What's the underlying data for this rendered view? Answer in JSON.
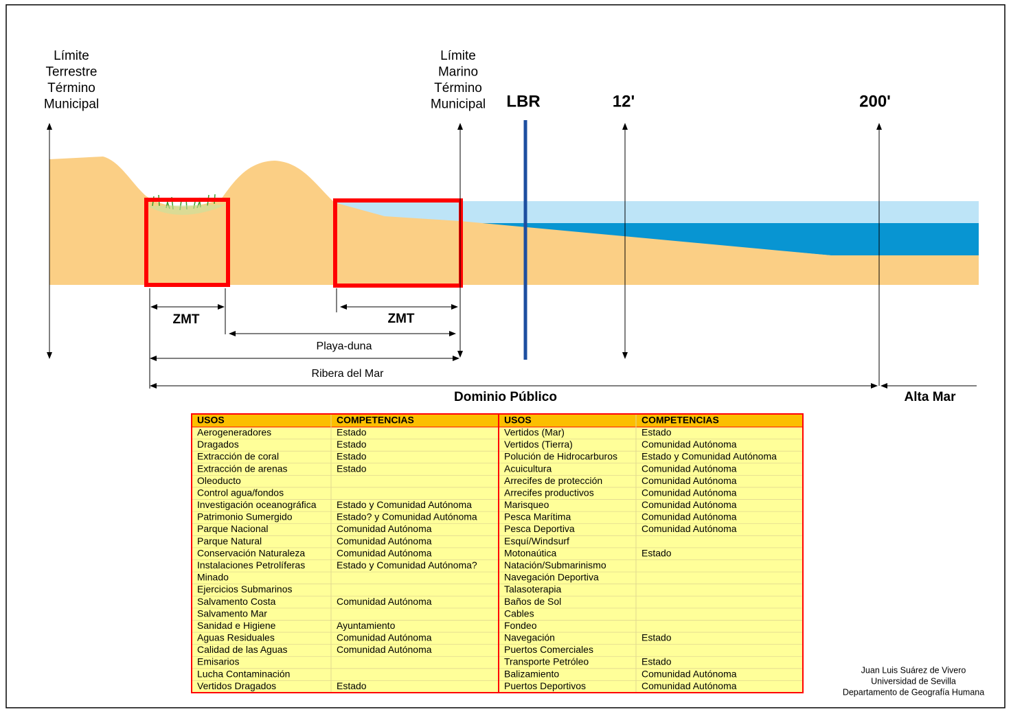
{
  "labels": {
    "terrestre": [
      "Límite",
      "Terrestre",
      "Término",
      "Municipal"
    ],
    "marino": [
      "Límite",
      "Marino",
      "Término",
      "Municipal"
    ],
    "lbr": "LBR",
    "twelve": "12'",
    "twohundred": "200'"
  },
  "zones": {
    "zmt_1": "ZMT",
    "zmt_2": "ZMT",
    "playa_duna": "Playa-duna",
    "ribera": "Ribera del Mar",
    "dominio": "Dominio Público",
    "alta_mar": "Alta Mar"
  },
  "table": {
    "headers": [
      "USOS",
      "COMPETENCIAS",
      "USOS",
      "COMPETENCIAS"
    ],
    "left": [
      {
        "uso": "Aerogeneradores",
        "competencia": "Estado"
      },
      {
        "uso": "Dragados",
        "competencia": "Estado"
      },
      {
        "uso": "Extracción de coral",
        "competencia": "Estado"
      },
      {
        "uso": "Extracción de arenas",
        "competencia": "Estado"
      },
      {
        "uso": "Oleoducto"
      },
      {
        "uso": "Control agua/fondos"
      },
      {
        "uso": "Investigación oceanográfica",
        "competencia": "Estado y Comunidad Autónoma"
      },
      {
        "uso": "Patrimonio Sumergido",
        "competencia": "Estado? y Comunidad Autónoma"
      },
      {
        "uso": "Parque Nacional",
        "competencia": "Comunidad Autónoma"
      },
      {
        "uso": "Parque Natural",
        "competencia": "Comunidad Autónoma"
      },
      {
        "uso": "Conservación Naturaleza",
        "competencia": "Comunidad Autónoma"
      },
      {
        "uso": "Instalaciones Petrolíferas",
        "competencia": "Estado y Comunidad Autónoma?"
      },
      {
        "uso": "Minado"
      },
      {
        "uso": "Ejercicios Submarinos"
      },
      {
        "uso": "Salvamento Costa",
        "competencia": "Comunidad Autónoma"
      },
      {
        "uso": "Salvamento Mar"
      },
      {
        "uso": "Sanidad e Higiene",
        "competencia": "Ayuntamiento"
      },
      {
        "uso": "Aguas Residuales",
        "competencia": "Comunidad Autónoma"
      },
      {
        "uso": "Calidad de las Aguas",
        "competencia": "Comunidad Autónoma"
      },
      {
        "uso": "Emisarios"
      },
      {
        "uso": "Lucha Contaminación"
      },
      {
        "uso": "Vertidos Dragados",
        "competencia": "Estado"
      }
    ],
    "right": [
      {
        "uso": "Vertidos (Mar)",
        "competencia": "Estado"
      },
      {
        "uso": "Vertidos (Tierra)",
        "competencia": "Comunidad Autónoma"
      },
      {
        "uso": "Polución de Hidrocarburos",
        "competencia": "Estado y Comunidad Autónoma"
      },
      {
        "uso": "Acuicultura",
        "competencia": "Comunidad Autónoma"
      },
      {
        "uso": "Arrecifes de protección",
        "competencia": "Comunidad Autónoma"
      },
      {
        "uso": "Arrecifes productivos",
        "competencia": "Comunidad Autónoma"
      },
      {
        "uso": "Marisqueo",
        "competencia": "Comunidad Autónoma"
      },
      {
        "uso": "Pesca Marítima",
        "competencia": "Comunidad Autónoma"
      },
      {
        "uso": "Pesca Deportiva",
        "competencia": "Comunidad Autónoma"
      },
      {
        "uso": "Esquí/Windsurf"
      },
      {
        "uso": "Motonaútica",
        "competencia": "Estado"
      },
      {
        "uso": "Natación/Submarinismo"
      },
      {
        "uso": "Navegación Deportiva"
      },
      {
        "uso": "Talasoterapia"
      },
      {
        "uso": "Baños de Sol"
      },
      {
        "uso": "Cables"
      },
      {
        "uso": "Fondeo"
      },
      {
        "uso": "Navegación",
        "competencia": "Estado"
      },
      {
        "uso": "Puertos Comerciales"
      },
      {
        "uso": "Transporte Petróleo",
        "competencia": "Estado"
      },
      {
        "uso": "Balizamiento",
        "competencia": "Comunidad Autónoma"
      },
      {
        "uso": "Puertos Deportivos",
        "competencia": "Comunidad Autónoma"
      }
    ]
  },
  "credit": [
    "Juan Luis Suárez de Vivero",
    "Universidad de Sevilla",
    "Departamento de Geografía Humana"
  ]
}
